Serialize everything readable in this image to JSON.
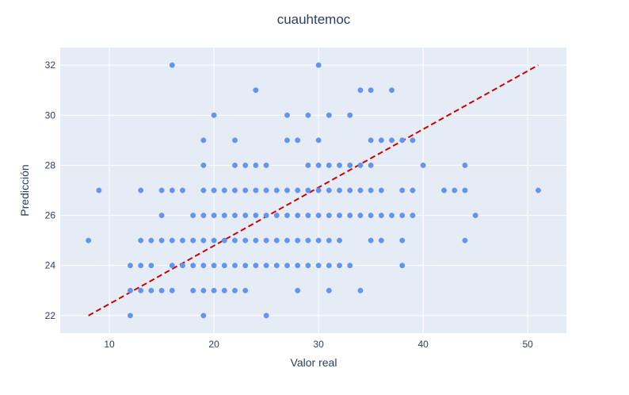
{
  "chart_data": {
    "type": "scatter",
    "title": "cuauhtemoc",
    "xlabel": "Valor real",
    "ylabel": "Predicción",
    "xlim": [
      5.3,
      53.7
    ],
    "ylim": [
      21.3,
      32.7
    ],
    "xticks": [
      10,
      20,
      30,
      40,
      50
    ],
    "yticks": [
      22,
      24,
      26,
      28,
      30,
      32
    ],
    "grid": true,
    "colors": {
      "plot_bg": "#e5ecf6",
      "grid": "#ffffff",
      "points": "#6495ed",
      "reference_line": "#cc0000",
      "text": "#2a3f5f"
    },
    "series": [
      {
        "kind": "points",
        "points": [
          [
            8,
            25
          ],
          [
            9,
            27
          ],
          [
            12,
            22
          ],
          [
            12,
            23
          ],
          [
            12,
            24
          ],
          [
            13,
            23
          ],
          [
            13,
            24
          ],
          [
            13,
            25
          ],
          [
            13,
            27
          ],
          [
            14,
            23
          ],
          [
            14,
            24
          ],
          [
            14,
            25
          ],
          [
            15,
            23
          ],
          [
            15,
            25
          ],
          [
            15,
            26
          ],
          [
            15,
            27
          ],
          [
            16,
            23
          ],
          [
            16,
            24
          ],
          [
            16,
            25
          ],
          [
            16,
            27
          ],
          [
            16,
            32
          ],
          [
            17,
            24
          ],
          [
            17,
            25
          ],
          [
            17,
            27
          ],
          [
            18,
            23
          ],
          [
            18,
            24
          ],
          [
            18,
            25
          ],
          [
            18,
            26
          ],
          [
            19,
            22
          ],
          [
            19,
            23
          ],
          [
            19,
            24
          ],
          [
            19,
            25
          ],
          [
            19,
            26
          ],
          [
            19,
            27
          ],
          [
            19,
            28
          ],
          [
            19,
            29
          ],
          [
            20,
            23
          ],
          [
            20,
            24
          ],
          [
            20,
            25
          ],
          [
            20,
            26
          ],
          [
            20,
            27
          ],
          [
            20,
            30
          ],
          [
            21,
            23
          ],
          [
            21,
            24
          ],
          [
            21,
            25
          ],
          [
            21,
            26
          ],
          [
            21,
            27
          ],
          [
            22,
            23
          ],
          [
            22,
            24
          ],
          [
            22,
            25
          ],
          [
            22,
            26
          ],
          [
            22,
            27
          ],
          [
            22,
            28
          ],
          [
            22,
            29
          ],
          [
            23,
            23
          ],
          [
            23,
            24
          ],
          [
            23,
            25
          ],
          [
            23,
            26
          ],
          [
            23,
            27
          ],
          [
            23,
            28
          ],
          [
            24,
            24
          ],
          [
            24,
            25
          ],
          [
            24,
            26
          ],
          [
            24,
            27
          ],
          [
            24,
            28
          ],
          [
            24,
            31
          ],
          [
            25,
            22
          ],
          [
            25,
            24
          ],
          [
            25,
            25
          ],
          [
            25,
            26
          ],
          [
            25,
            27
          ],
          [
            25,
            28
          ],
          [
            26,
            24
          ],
          [
            26,
            25
          ],
          [
            26,
            26
          ],
          [
            26,
            27
          ],
          [
            27,
            24
          ],
          [
            27,
            25
          ],
          [
            27,
            26
          ],
          [
            27,
            27
          ],
          [
            27,
            29
          ],
          [
            27,
            30
          ],
          [
            28,
            23
          ],
          [
            28,
            24
          ],
          [
            28,
            25
          ],
          [
            28,
            26
          ],
          [
            28,
            27
          ],
          [
            28,
            29
          ],
          [
            29,
            24
          ],
          [
            29,
            25
          ],
          [
            29,
            26
          ],
          [
            29,
            27
          ],
          [
            29,
            28
          ],
          [
            29,
            30
          ],
          [
            30,
            24
          ],
          [
            30,
            25
          ],
          [
            30,
            26
          ],
          [
            30,
            27
          ],
          [
            30,
            28
          ],
          [
            30,
            29
          ],
          [
            30,
            32
          ],
          [
            31,
            23
          ],
          [
            31,
            24
          ],
          [
            31,
            25
          ],
          [
            31,
            26
          ],
          [
            31,
            27
          ],
          [
            31,
            28
          ],
          [
            31,
            30
          ],
          [
            32,
            24
          ],
          [
            32,
            25
          ],
          [
            32,
            26
          ],
          [
            32,
            27
          ],
          [
            32,
            28
          ],
          [
            33,
            24
          ],
          [
            33,
            26
          ],
          [
            33,
            27
          ],
          [
            33,
            28
          ],
          [
            33,
            30
          ],
          [
            34,
            23
          ],
          [
            34,
            26
          ],
          [
            34,
            27
          ],
          [
            34,
            28
          ],
          [
            34,
            31
          ],
          [
            35,
            25
          ],
          [
            35,
            26
          ],
          [
            35,
            27
          ],
          [
            35,
            28
          ],
          [
            35,
            29
          ],
          [
            35,
            31
          ],
          [
            36,
            25
          ],
          [
            36,
            26
          ],
          [
            36,
            27
          ],
          [
            36,
            29
          ],
          [
            37,
            26
          ],
          [
            37,
            29
          ],
          [
            37,
            31
          ],
          [
            38,
            24
          ],
          [
            38,
            25
          ],
          [
            38,
            26
          ],
          [
            38,
            27
          ],
          [
            38,
            29
          ],
          [
            39,
            26
          ],
          [
            39,
            27
          ],
          [
            39,
            29
          ],
          [
            40,
            28
          ],
          [
            42,
            27
          ],
          [
            43,
            27
          ],
          [
            44,
            25
          ],
          [
            44,
            27
          ],
          [
            44,
            28
          ],
          [
            45,
            26
          ],
          [
            51,
            27
          ]
        ]
      },
      {
        "kind": "line",
        "style": "dashed",
        "points": [
          [
            8,
            22
          ],
          [
            51,
            32
          ]
        ]
      }
    ]
  }
}
